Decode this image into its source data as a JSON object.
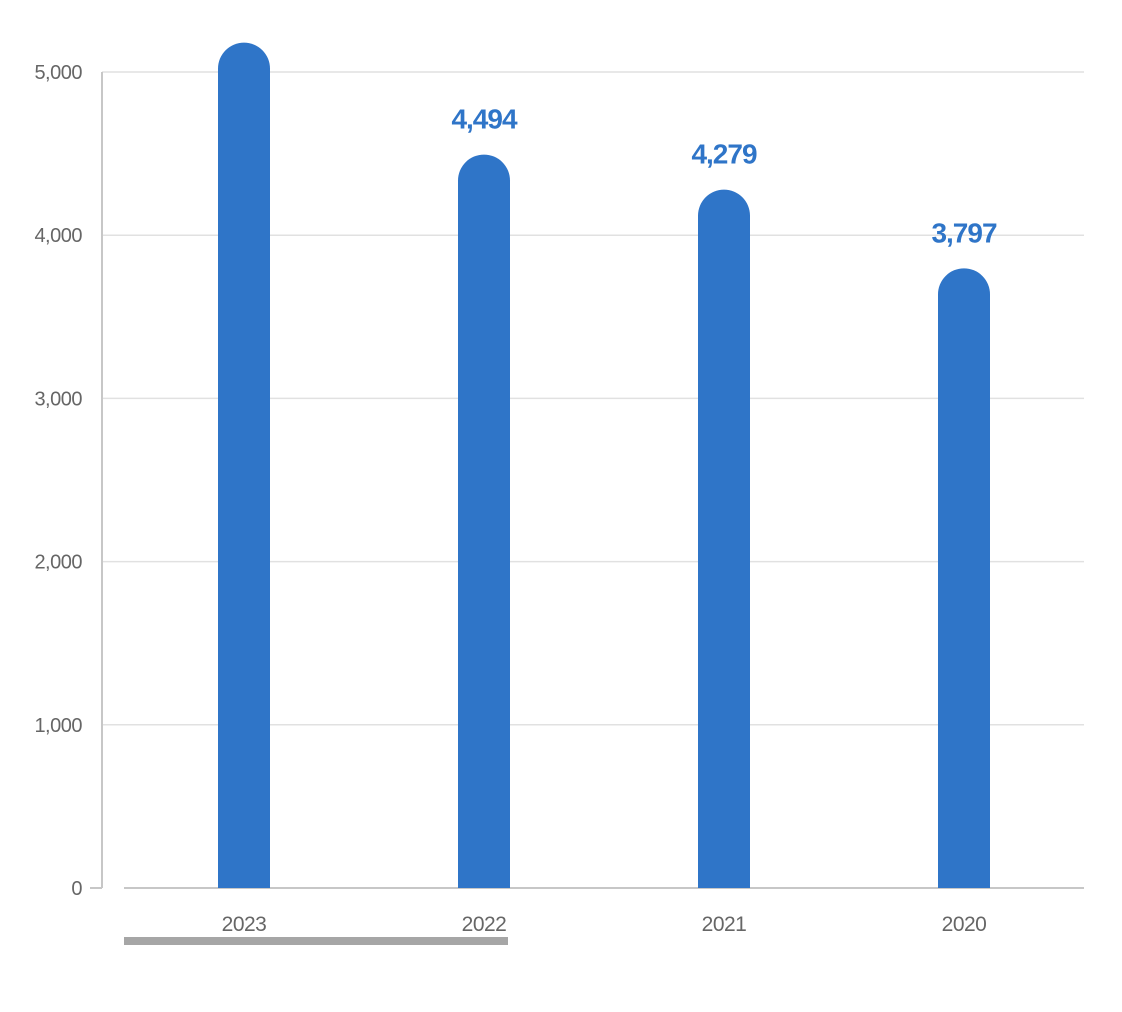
{
  "chart_data": {
    "type": "bar",
    "categories": [
      "2023",
      "2022",
      "2021",
      "2020"
    ],
    "values": [
      5180,
      4494,
      4279,
      3797
    ],
    "data_labels": [
      "",
      "4,494",
      "4,279",
      "3,797"
    ],
    "y_ticks": [
      0,
      1000,
      2000,
      3000,
      4000,
      5000
    ],
    "y_tick_labels": [
      "0",
      "1,000",
      "2,000",
      "3,000",
      "4,000",
      "5,000"
    ],
    "ylim": [
      0,
      5000
    ],
    "title": "",
    "xlabel": "",
    "ylabel": "",
    "grid": true,
    "legend": "none",
    "colors": {
      "bar": "#2f75c8",
      "grid": "#e1e1e1",
      "axis": "#c7c7c7",
      "tick_text": "#666666",
      "scrollbar": "#a6a6a6"
    }
  },
  "scrollbar": {
    "visible_fraction": 0.4
  }
}
